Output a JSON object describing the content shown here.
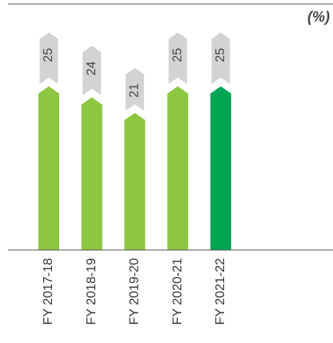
{
  "chart_data": {
    "type": "bar",
    "stacked": true,
    "title": "(%)",
    "categories": [
      "FY 2017-18",
      "FY 2018-19",
      "FY 2019-20",
      "FY 2020-21",
      "FY 2021-22"
    ],
    "series": [
      {
        "colors": [
          "#8dc63f",
          "#8dc63f",
          "#8dc63f",
          "#8dc63f",
          "#00a651"
        ],
        "values": [
          74,
          69,
          62,
          74,
          74
        ]
      },
      {
        "color": "#d1d3d4",
        "values": [
          25,
          24,
          21,
          25,
          25
        ]
      }
    ],
    "ylim": [
      0,
      100
    ]
  }
}
